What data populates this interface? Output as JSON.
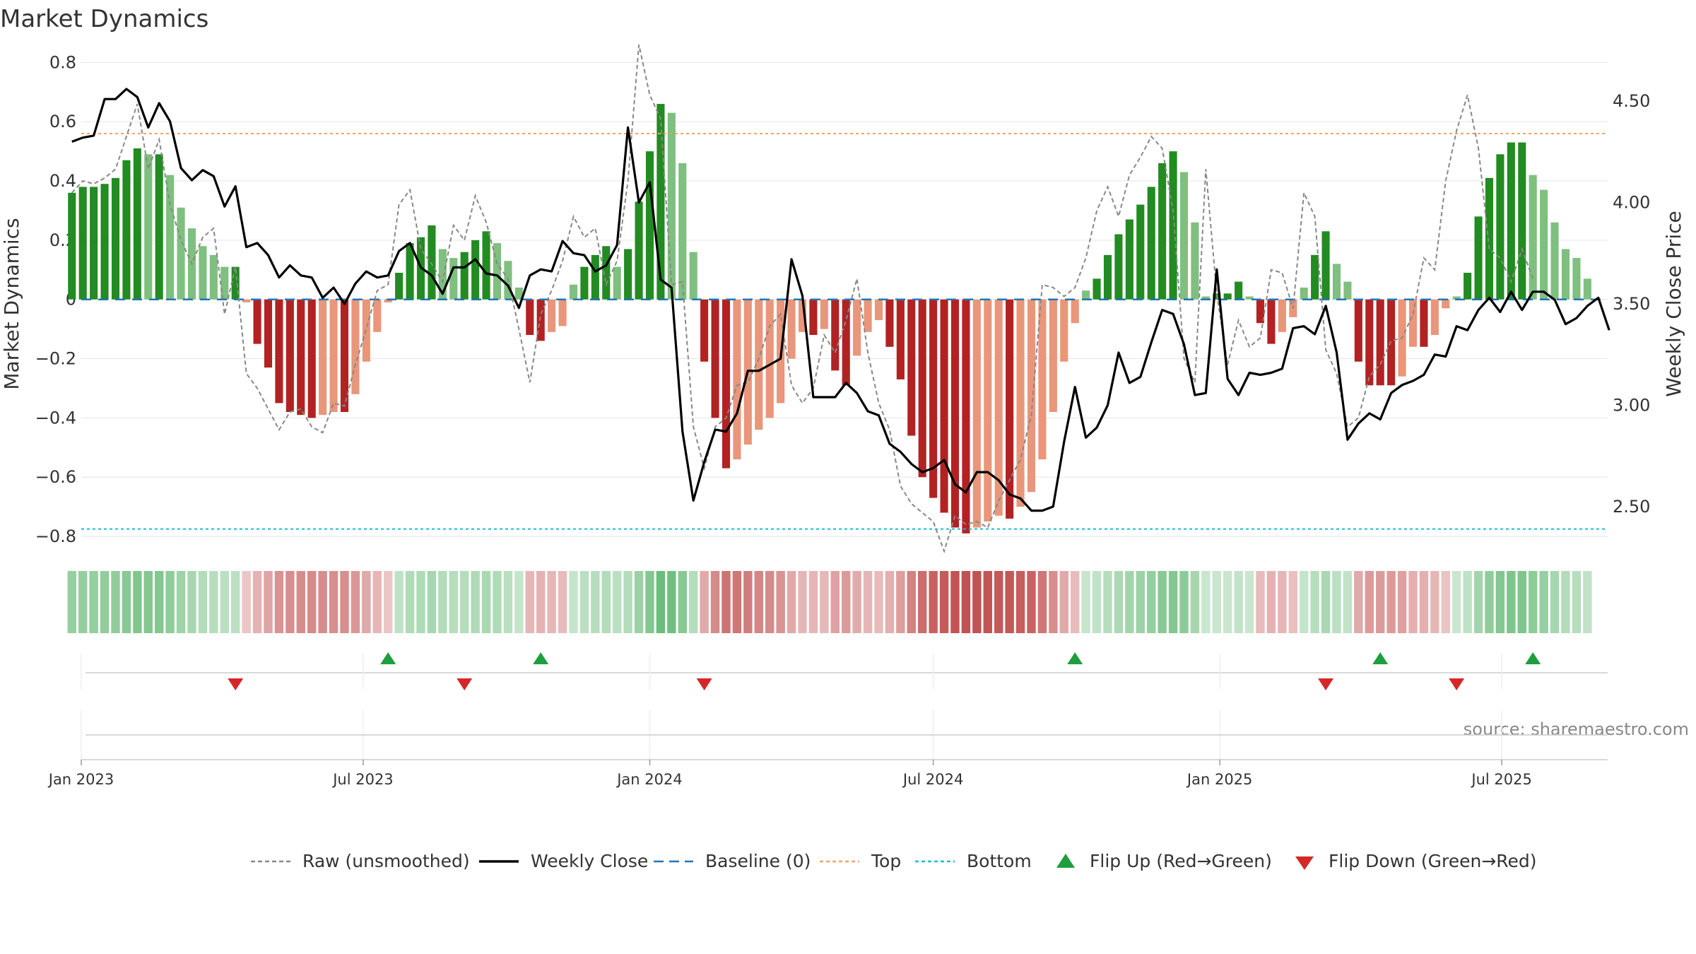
{
  "chart_data": {
    "type": "bar",
    "title": "Market Dynamics",
    "source_note": "source: sharemaestro.com",
    "ylabel": "Market Dynamics",
    "y2label": "Weekly Close Price",
    "ylim": [
      -0.85,
      0.82
    ],
    "y2lim": [
      2.28,
      4.72
    ],
    "yticks": [
      0.8,
      0.6,
      0.4,
      0.2,
      0,
      -0.2,
      -0.4,
      -0.6,
      -0.8
    ],
    "ytick_labels": [
      "0.8",
      "0.6",
      "0.4",
      "0.2",
      "0",
      "−0.2",
      "−0.4",
      "−0.6",
      "−0.8"
    ],
    "y2ticks": [
      4.5,
      4.0,
      3.5,
      3.0,
      2.5
    ],
    "y2tick_labels": [
      "4.50",
      "4.00",
      "3.50",
      "3.00",
      "2.50"
    ],
    "x_start": "2023-01-01",
    "x_end": "2025-09-07",
    "xticks": [
      "2023-01-01",
      "2023-07-01",
      "2024-01-01",
      "2024-07-01",
      "2025-01-01",
      "2025-07-01"
    ],
    "xtick_labels": [
      "Jan 2023",
      "Jul 2023",
      "Jan 2024",
      "Jul 2024",
      "Jan 2025",
      "Jul 2025"
    ],
    "top_level": 0.56,
    "bottom_level": -0.775,
    "baseline": 0,
    "weeks_start": "2022-12-26",
    "dynamics": [
      0.36,
      0.38,
      0.38,
      0.39,
      0.41,
      0.47,
      0.51,
      0.49,
      0.49,
      0.42,
      0.31,
      0.24,
      0.18,
      0.15,
      0.11,
      0.11,
      -0.01,
      -0.15,
      -0.23,
      -0.35,
      -0.38,
      -0.39,
      -0.4,
      -0.39,
      -0.38,
      -0.38,
      -0.32,
      -0.21,
      -0.11,
      -0.01,
      0.09,
      0.19,
      0.21,
      0.25,
      0.17,
      0.14,
      0.16,
      0.2,
      0.23,
      0.19,
      0.13,
      0.04,
      -0.12,
      -0.14,
      -0.11,
      -0.09,
      0.05,
      0.11,
      0.15,
      0.18,
      0.11,
      0.17,
      0.33,
      0.5,
      0.66,
      0.63,
      0.46,
      0.16,
      -0.21,
      -0.4,
      -0.57,
      -0.54,
      -0.49,
      -0.44,
      -0.4,
      -0.35,
      -0.2,
      -0.11,
      -0.12,
      -0.1,
      -0.24,
      -0.29,
      -0.19,
      -0.11,
      -0.07,
      -0.16,
      -0.27,
      -0.46,
      -0.6,
      -0.67,
      -0.72,
      -0.77,
      -0.79,
      -0.77,
      -0.75,
      -0.73,
      -0.74,
      -0.7,
      -0.65,
      -0.54,
      -0.38,
      -0.21,
      -0.08,
      0.03,
      0.07,
      0.15,
      0.22,
      0.27,
      0.32,
      0.38,
      0.46,
      0.5,
      0.43,
      0.26,
      0.01,
      0.02,
      0.02,
      0.06,
      0.01,
      -0.08,
      -0.15,
      -0.11,
      -0.06,
      0.04,
      0.15,
      0.23,
      0.12,
      0.06,
      -0.21,
      -0.29,
      -0.29,
      -0.29,
      -0.26,
      -0.16,
      -0.16,
      -0.12,
      -0.03,
      0.01,
      0.09,
      0.28,
      0.41,
      0.49,
      0.53,
      0.53,
      0.42,
      0.37,
      0.26,
      0.17,
      0.14,
      0.07
    ],
    "raw": [
      0.36,
      0.4,
      0.39,
      0.41,
      0.44,
      0.55,
      0.66,
      0.44,
      0.54,
      0.32,
      0.2,
      0.12,
      0.21,
      0.24,
      -0.05,
      0.11,
      -0.25,
      -0.3,
      -0.37,
      -0.44,
      -0.38,
      -0.37,
      -0.43,
      -0.45,
      -0.35,
      -0.36,
      -0.22,
      -0.1,
      0.03,
      0.05,
      0.32,
      0.37,
      0.17,
      0.12,
      0.06,
      0.25,
      0.2,
      0.35,
      0.26,
      0.12,
      0.07,
      -0.1,
      -0.28,
      -0.05,
      0.03,
      0.13,
      0.28,
      0.21,
      0.24,
      0.05,
      0.13,
      0.4,
      0.86,
      0.69,
      0.61,
      0.05,
      0.06,
      -0.43,
      -0.57,
      -0.43,
      -0.4,
      -0.29,
      -0.28,
      -0.2,
      -0.09,
      -0.05,
      -0.29,
      -0.35,
      -0.3,
      -0.12,
      -0.18,
      -0.07,
      0.07,
      -0.18,
      -0.35,
      -0.44,
      -0.63,
      -0.69,
      -0.72,
      -0.75,
      -0.85,
      -0.73,
      -0.76,
      -0.75,
      -0.77,
      -0.68,
      -0.61,
      -0.54,
      -0.39,
      0.05,
      0.04,
      0.01,
      0.04,
      0.14,
      0.3,
      0.38,
      0.28,
      0.42,
      0.48,
      0.55,
      0.51,
      0.3,
      -0.2,
      -0.28,
      0.44,
      0.02,
      -0.22,
      -0.07,
      -0.16,
      -0.13,
      0.1,
      0.09,
      -0.03,
      0.36,
      0.28,
      -0.17,
      -0.25,
      -0.43,
      -0.4,
      -0.26,
      -0.22,
      -0.14,
      -0.13,
      -0.05,
      0.14,
      0.1,
      0.4,
      0.57,
      0.69,
      0.51,
      0.17,
      0.14,
      0.06,
      0.17,
      0.07
    ],
    "price": [
      4.3,
      4.32,
      4.33,
      4.51,
      4.51,
      4.56,
      4.52,
      4.37,
      4.49,
      4.4,
      4.17,
      4.11,
      4.16,
      4.13,
      3.98,
      4.08,
      3.78,
      3.8,
      3.74,
      3.63,
      3.69,
      3.64,
      3.63,
      3.53,
      3.58,
      3.5,
      3.6,
      3.66,
      3.63,
      3.64,
      3.76,
      3.8,
      3.68,
      3.64,
      3.55,
      3.68,
      3.68,
      3.72,
      3.65,
      3.64,
      3.59,
      3.48,
      3.64,
      3.67,
      3.66,
      3.81,
      3.75,
      3.74,
      3.66,
      3.69,
      3.79,
      4.37,
      4.0,
      4.1,
      3.62,
      3.58,
      2.87,
      2.53,
      2.72,
      2.88,
      2.87,
      2.96,
      3.17,
      3.17,
      3.2,
      3.23,
      3.72,
      3.54,
      3.04,
      3.04,
      3.04,
      3.11,
      3.06,
      2.97,
      2.95,
      2.81,
      2.77,
      2.71,
      2.67,
      2.69,
      2.73,
      2.61,
      2.57,
      2.67,
      2.67,
      2.63,
      2.56,
      2.54,
      2.48,
      2.48,
      2.5,
      2.82,
      3.09,
      2.84,
      2.89,
      3.0,
      3.26,
      3.11,
      3.14,
      3.31,
      3.47,
      3.45,
      3.3,
      3.05,
      3.06,
      3.67,
      3.13,
      3.05,
      3.16,
      3.15,
      3.16,
      3.18,
      3.38,
      3.39,
      3.35,
      3.49,
      3.26,
      2.83,
      2.91,
      2.96,
      2.93,
      3.06,
      3.1,
      3.12,
      3.15,
      3.25,
      3.24,
      3.39,
      3.37,
      3.47,
      3.53,
      3.46,
      3.56,
      3.47,
      3.56,
      3.56,
      3.52,
      3.4,
      3.43,
      3.49,
      3.53,
      3.37
    ],
    "regime_band": {
      "colors_note": "per-week cell color in the regime strip follows the sign and strength of dynamics"
    },
    "flip_up_dates": [
      "2023-07-17",
      "2023-10-23",
      "2024-09-30",
      "2025-04-14",
      "2025-07-21"
    ],
    "flip_down_dates": [
      "2023-04-10",
      "2023-09-04",
      "2024-02-05",
      "2025-03-10",
      "2025-06-02"
    ],
    "legend": {
      "placement": "bottom-center",
      "items": [
        {
          "label": "Raw (unsmoothed)",
          "kind": "dashed-line",
          "color": "#888888"
        },
        {
          "label": "Weekly Close",
          "kind": "line",
          "color": "#000000"
        },
        {
          "label": "Baseline (0)",
          "kind": "dashed-line",
          "color": "#1f77b4"
        },
        {
          "label": "Top",
          "kind": "dotted-line",
          "color": "#f4a460"
        },
        {
          "label": "Bottom",
          "kind": "dotted-line",
          "color": "#17becf"
        },
        {
          "label": "Flip Up (Red→Green)",
          "kind": "up-triangle",
          "color": "#1e9e3c"
        },
        {
          "label": "Flip Down (Green→Red)",
          "kind": "down-triangle",
          "color": "#d62728"
        }
      ]
    }
  },
  "colors": {
    "strong_green": "#228b22",
    "light_green": "#7fbf7f",
    "strong_red": "#b22222",
    "light_red": "#e9967a",
    "price_line": "#000000",
    "raw_line": "#888888",
    "baseline": "#1f77b4",
    "top": "#f4a460",
    "bottom": "#17becf",
    "flip_up": "#1e9e3c",
    "flip_down": "#d62728",
    "grid": "#e6e6e6",
    "text": "#333333"
  }
}
